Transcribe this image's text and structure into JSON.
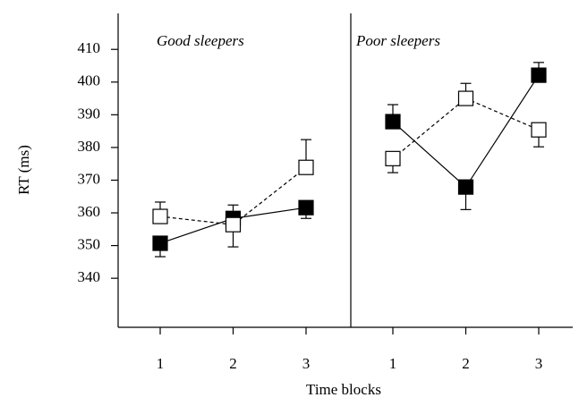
{
  "chart_data": {
    "type": "line",
    "ylabel": "RT (ms)",
    "xlabel": "Time blocks",
    "ylim": [
      325,
      421
    ],
    "yticks": [
      340,
      350,
      360,
      370,
      380,
      390,
      400,
      410
    ],
    "panels": [
      {
        "title": "Good sleepers",
        "categories": [
          "1",
          "2",
          "3"
        ],
        "series": [
          {
            "color": "#000000",
            "dashed": false,
            "values": [
              350.7,
              358.3,
              361.6
            ],
            "errors": [
              4.1,
              4.1,
              3.3
            ]
          },
          {
            "color": "#ffffff",
            "dashed": true,
            "values": [
              358.9,
              356.4,
              373.9
            ],
            "errors": [
              4.4,
              6.8,
              8.5
            ]
          }
        ]
      },
      {
        "title": "Poor sleepers",
        "categories": [
          "1",
          "2",
          "3"
        ],
        "series": [
          {
            "color": "#000000",
            "dashed": false,
            "values": [
              387.9,
              367.9,
              402.1
            ],
            "errors": [
              5.2,
              6.9,
              3.9
            ]
          },
          {
            "color": "#ffffff",
            "dashed": true,
            "values": [
              376.6,
              395.0,
              385.4
            ],
            "errors": [
              4.3,
              4.6,
              5.2
            ]
          }
        ]
      }
    ]
  }
}
